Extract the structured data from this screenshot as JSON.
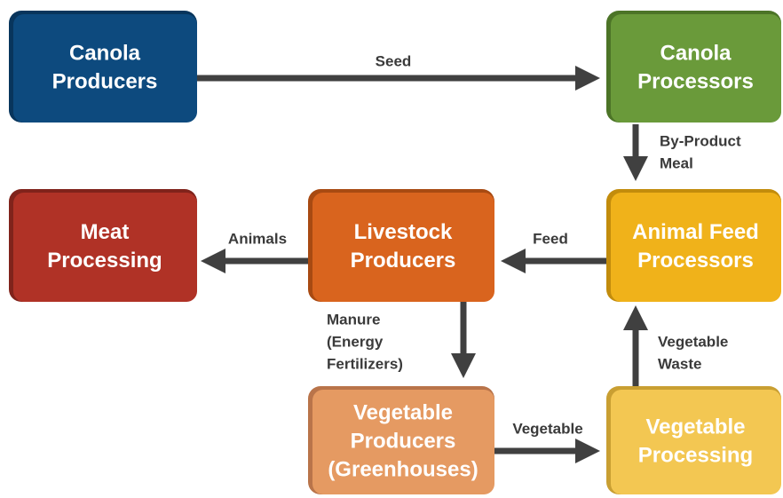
{
  "nodes": [
    {
      "lines": [
        "Canola",
        "Producers"
      ]
    },
    {
      "lines": [
        "Canola",
        "Processors"
      ]
    },
    {
      "lines": [
        "Meat",
        "Processing"
      ]
    },
    {
      "lines": [
        "Livestock",
        "Producers"
      ]
    },
    {
      "lines": [
        "Animal Feed",
        "Processors"
      ]
    },
    {
      "lines": [
        "Vegetable",
        "Producers",
        "(Greenhouses)"
      ]
    },
    {
      "lines": [
        "Vegetable",
        "Processing"
      ]
    }
  ],
  "edges": [
    {
      "lines": [
        "Seed"
      ]
    },
    {
      "lines": [
        "By-Product",
        "Meal"
      ]
    },
    {
      "lines": [
        "Feed"
      ]
    },
    {
      "lines": [
        "Animals"
      ]
    },
    {
      "lines": [
        "Manure",
        "(Energy",
        "Fertilizers)"
      ]
    },
    {
      "lines": [
        "Vegetable"
      ]
    },
    {
      "lines": [
        "Vegetable",
        "Waste"
      ]
    }
  ]
}
